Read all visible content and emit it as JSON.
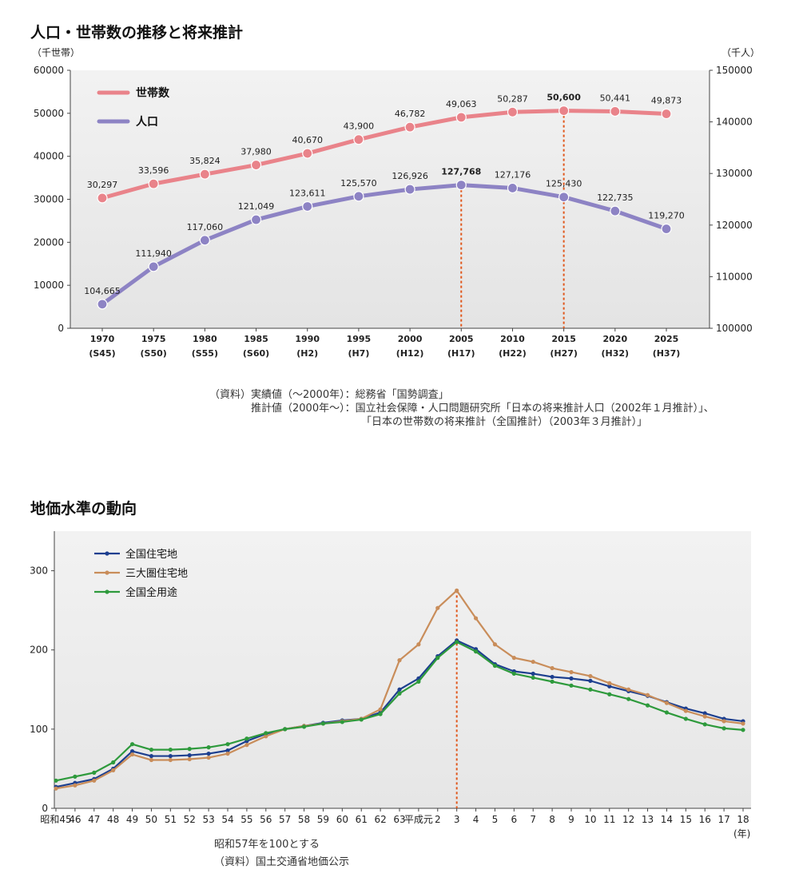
{
  "chart1": {
    "title": "人口・世帯数の推移と将来推計",
    "left_unit": "（千世帯）",
    "right_unit": "（千人）",
    "chart_data": {
      "type": "line",
      "x": [
        "1970",
        "1975",
        "1980",
        "1985",
        "1990",
        "1995",
        "2000",
        "2005",
        "2010",
        "2015",
        "2020",
        "2025"
      ],
      "x_sub": [
        "(S45)",
        "(S50)",
        "(S55)",
        "(S60)",
        "(H2)",
        "(H7)",
        "(H12)",
        "(H17)",
        "(H22)",
        "(H27)",
        "(H32)",
        "(H37)"
      ],
      "ylim_left": [
        0,
        60000
      ],
      "yticks_left": [
        "0",
        "10000",
        "20000",
        "30000",
        "40000",
        "50000",
        "60000"
      ],
      "ylim_right": [
        100000,
        150000
      ],
      "yticks_right": [
        "100000",
        "110000",
        "120000",
        "130000",
        "140000",
        "150000"
      ],
      "series": [
        {
          "name": "世帯数",
          "axis": "left",
          "color": "#e9838a",
          "values": [
            30297,
            33596,
            35824,
            37980,
            40670,
            43900,
            46782,
            49063,
            50287,
            50600,
            50441,
            49873
          ],
          "labels": [
            "30,297",
            "33,596",
            "35,824",
            "37,980",
            "40,670",
            "43,900",
            "46,782",
            "49,063",
            "50,287",
            "50,600",
            "50,441",
            "49,873"
          ],
          "highlight_index": 9
        },
        {
          "name": "人口",
          "axis": "right",
          "color": "#8d83c4",
          "values": [
            104665,
            111940,
            117060,
            121049,
            123611,
            125570,
            126926,
            127768,
            127176,
            125430,
            122735,
            119270
          ],
          "labels": [
            "104,665",
            "111,940",
            "117,060",
            "121,049",
            "123,611",
            "125,570",
            "126,926",
            "127,768",
            "127,176",
            "125,430",
            "122,735",
            "119,270"
          ],
          "highlight_index": 7
        }
      ],
      "highlight_color": "#e0561a",
      "legend": "top-left"
    },
    "notes": [
      "（資料）実績値（～2000年）：総務省「国勢調査」",
      "推計値（2000年～）：国立社会保障・人口問題研究所「日本の将来推計人口（2002年１月推計）」、",
      "「日本の世帯数の将来推計（全国推計）（2003年３月推計）」"
    ]
  },
  "chart2": {
    "title": "地価水準の動向",
    "chart_data": {
      "type": "line",
      "x": [
        "昭和45",
        "46",
        "47",
        "48",
        "49",
        "50",
        "51",
        "52",
        "53",
        "54",
        "55",
        "56",
        "57",
        "58",
        "59",
        "60",
        "61",
        "62",
        "63",
        "平成元",
        "2",
        "3",
        "4",
        "5",
        "6",
        "7",
        "8",
        "9",
        "10",
        "11",
        "12",
        "13",
        "14",
        "15",
        "16",
        "17",
        "18"
      ],
      "x_unit": "(年)",
      "ylim": [
        0,
        350
      ],
      "yticks": [
        "0",
        "100",
        "200",
        "300"
      ],
      "series": [
        {
          "name": "全国住宅地",
          "color": "#1d3f8f",
          "values": [
            27,
            32,
            37,
            50,
            72,
            66,
            66,
            67,
            69,
            73,
            85,
            94,
            100,
            104,
            108,
            111,
            113,
            121,
            150,
            164,
            192,
            212,
            201,
            182,
            173,
            170,
            166,
            164,
            161,
            154,
            148,
            142,
            134,
            126,
            120,
            113,
            110
          ]
        },
        {
          "name": "三大圏住宅地",
          "color": "#c98d5a",
          "values": [
            25,
            29,
            35,
            48,
            68,
            61,
            61,
            62,
            64,
            69,
            80,
            91,
            100,
            104,
            107,
            110,
            113,
            125,
            187,
            207,
            253,
            275,
            240,
            207,
            190,
            185,
            177,
            172,
            167,
            158,
            150,
            143,
            133,
            123,
            116,
            110,
            107
          ]
        },
        {
          "name": "全国全用途",
          "color": "#2e9a3c",
          "values": [
            35,
            40,
            45,
            58,
            81,
            74,
            74,
            75,
            77,
            81,
            88,
            95,
            100,
            103,
            107,
            109,
            112,
            119,
            145,
            160,
            190,
            210,
            198,
            180,
            170,
            165,
            160,
            155,
            150,
            144,
            138,
            130,
            121,
            113,
            106,
            101,
            99
          ]
        }
      ],
      "highlight_x": "3",
      "highlight_color": "#e0561a",
      "legend": "top-left"
    },
    "notes": [
      "昭和57年を100とする",
      "（資料）国土交通省地価公示"
    ]
  }
}
